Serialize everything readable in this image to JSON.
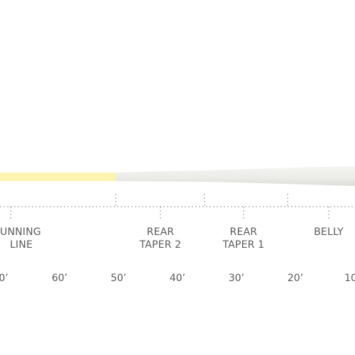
{
  "line_profile": {
    "running_line_color": "#fdf3b0",
    "head_color": "#ededeb",
    "dotted_line_color": "#9a9a9a"
  },
  "section_labels": [
    {
      "line1": "UNNING",
      "line2": "LINE"
    },
    {
      "line1": "REAR",
      "line2": "TAPER 2"
    },
    {
      "line1": "REAR",
      "line2": "TAPER 1"
    },
    {
      "line1": "BELLY",
      "line2": ""
    }
  ],
  "distance_labels": [
    "0’",
    "60’",
    "50’",
    "40’",
    "30’",
    "20’",
    "10"
  ]
}
